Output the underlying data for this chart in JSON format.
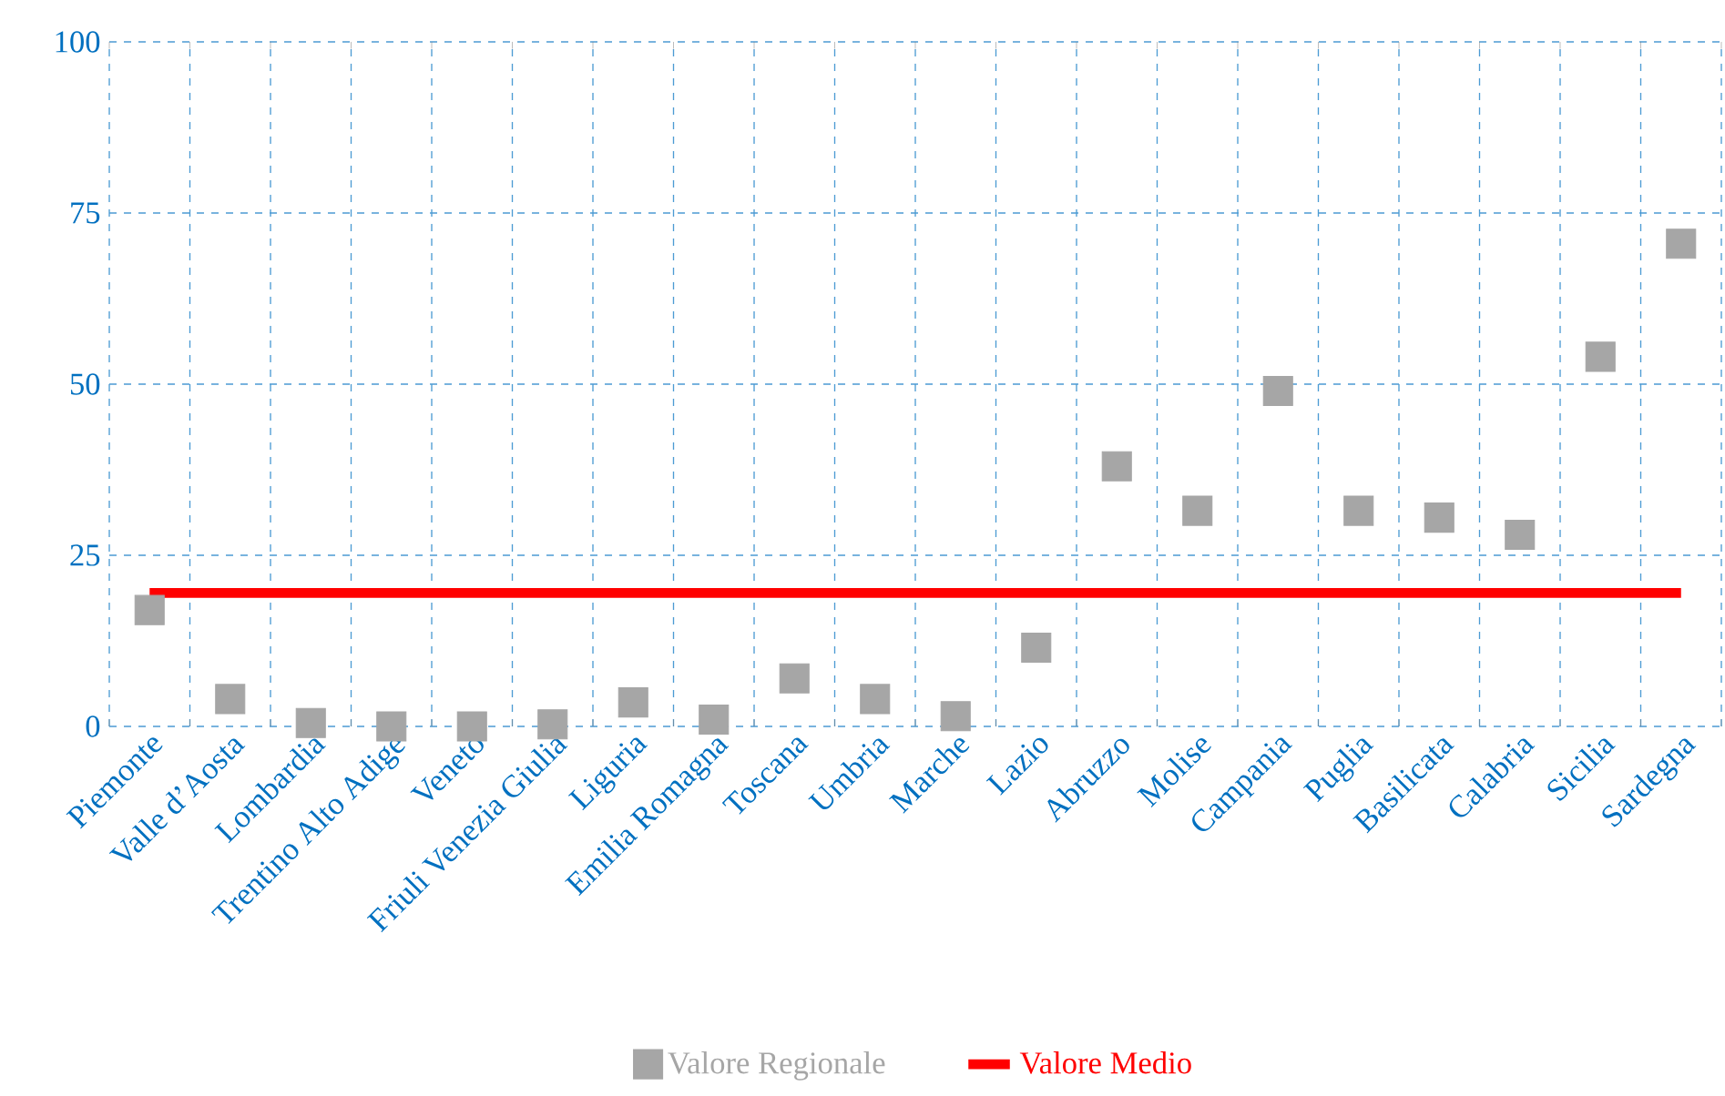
{
  "chart_data": {
    "type": "scatter",
    "categories": [
      "Piemonte",
      "Valle d’Aosta",
      "Lombardia",
      "Trentino Alto Adige",
      "Veneto",
      "Friuli Venezia Giulia",
      "Liguria",
      "Emilia Romagna",
      "Toscana",
      "Umbria",
      "Marche",
      "Lazio",
      "Abruzzo",
      "Molise",
      "Campania",
      "Puglia",
      "Basilicata",
      "Calabria",
      "Sicilia",
      "Sardegna"
    ],
    "series": [
      {
        "name": "Valore Regionale",
        "color": "#a6a6a6",
        "marker": "square",
        "values": [
          17,
          4,
          0.5,
          0,
          0,
          0.3,
          3.5,
          1,
          7,
          4,
          1.5,
          11.5,
          38,
          31.5,
          49,
          31.5,
          30.5,
          28,
          54,
          70.5
        ]
      },
      {
        "name": "Valore Medio",
        "type": "line",
        "color": "#ff0000",
        "marker": "none",
        "values": [
          19.5,
          19.5,
          19.5,
          19.5,
          19.5,
          19.5,
          19.5,
          19.5,
          19.5,
          19.5,
          19.5,
          19.5,
          19.5,
          19.5,
          19.5,
          19.5,
          19.5,
          19.5,
          19.5,
          19.5
        ]
      }
    ],
    "ylim": [
      0,
      100
    ],
    "yticks": [
      0,
      25,
      50,
      75,
      100
    ],
    "grid": true,
    "legend": "bottom"
  }
}
